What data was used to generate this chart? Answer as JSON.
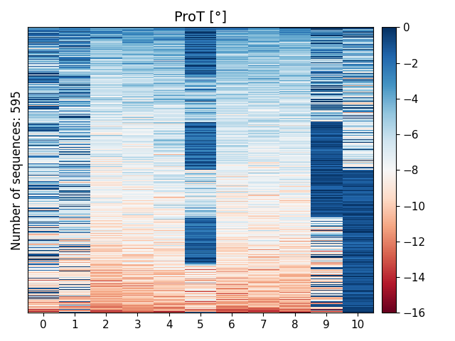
{
  "title": "ProT [°]",
  "ylabel": "Number of sequences: 595",
  "n_rows": 595,
  "n_cols": 11,
  "vmin": -16,
  "vmax": 0,
  "colormap": "RdBu",
  "xtick_labels": [
    "0",
    "1",
    "2",
    "3",
    "4",
    "5",
    "6",
    "7",
    "8",
    "9",
    "10"
  ],
  "colorbar_ticks": [
    0,
    -2,
    -4,
    -6,
    -8,
    -10,
    -12,
    -14,
    -16
  ],
  "title_fontsize": 14,
  "label_fontsize": 12,
  "tick_fontsize": 11,
  "seed": 7,
  "col_means": [
    -5.0,
    -5.5,
    -8.5,
    -8.0,
    -7.0,
    -4.5,
    -7.5,
    -7.5,
    -8.0,
    -5.5,
    -7.0
  ],
  "col_stds": [
    4.5,
    4.0,
    2.5,
    2.5,
    3.0,
    4.5,
    2.5,
    2.5,
    2.5,
    5.0,
    5.0
  ],
  "row_mean": -7.0,
  "row_std": 3.5,
  "row_weight": 0.6,
  "col_weight": 0.4,
  "n_block_rows": 8,
  "block_col5_blue": true
}
